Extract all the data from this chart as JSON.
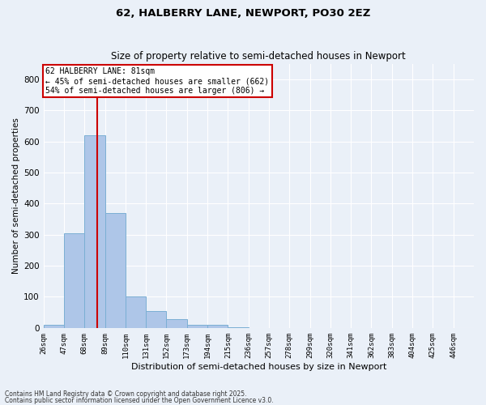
{
  "title1": "62, HALBERRY LANE, NEWPORT, PO30 2EZ",
  "title2": "Size of property relative to semi-detached houses in Newport",
  "xlabel": "Distribution of semi-detached houses by size in Newport",
  "ylabel": "Number of semi-detached properties",
  "bin_labels": [
    "26sqm",
    "47sqm",
    "68sqm",
    "89sqm",
    "110sqm",
    "131sqm",
    "152sqm",
    "173sqm",
    "194sqm",
    "215sqm",
    "236sqm",
    "257sqm",
    "278sqm",
    "299sqm",
    "320sqm",
    "341sqm",
    "362sqm",
    "383sqm",
    "404sqm",
    "425sqm",
    "446sqm"
  ],
  "bar_values": [
    10,
    305,
    620,
    370,
    100,
    55,
    27,
    10,
    10,
    2,
    0,
    0,
    0,
    0,
    0,
    0,
    0,
    0,
    0,
    0,
    0
  ],
  "bar_color": "#aec6e8",
  "bar_edge_color": "#7bafd4",
  "background_color": "#eaf0f8",
  "grid_color": "#ffffff",
  "vline_x": 81,
  "bin_edges": [
    26,
    47,
    68,
    89,
    110,
    131,
    152,
    173,
    194,
    215,
    236,
    257,
    278,
    299,
    320,
    341,
    362,
    383,
    404,
    425,
    446,
    467
  ],
  "bin_width": 21,
  "annotation_text": "62 HALBERRY LANE: 81sqm\n← 45% of semi-detached houses are smaller (662)\n54% of semi-detached houses are larger (806) →",
  "annotation_box_color": "#ffffff",
  "annotation_box_edge": "#cc0000",
  "vline_color": "#cc0000",
  "ylim": [
    0,
    850
  ],
  "yticks": [
    0,
    100,
    200,
    300,
    400,
    500,
    600,
    700,
    800
  ],
  "footnote1": "Contains HM Land Registry data © Crown copyright and database right 2025.",
  "footnote2": "Contains public sector information licensed under the Open Government Licence v3.0."
}
